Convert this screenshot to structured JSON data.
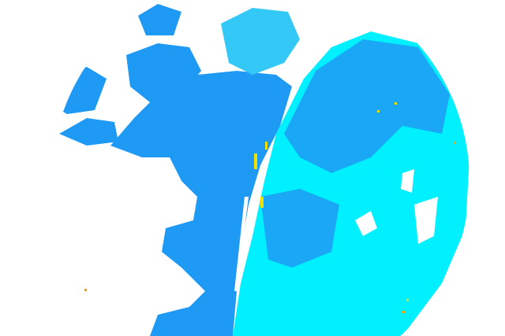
{
  "map": {
    "type": "weather-radar-reflectivity",
    "colors": {
      "background": "#ffffff",
      "light_echo": "#00f0ff",
      "medium_echo": "#1e9af5",
      "moderate_echo": "#33c8f5",
      "strong_echo": "#f0e000",
      "peak_echo": "#ff9900"
    }
  }
}
